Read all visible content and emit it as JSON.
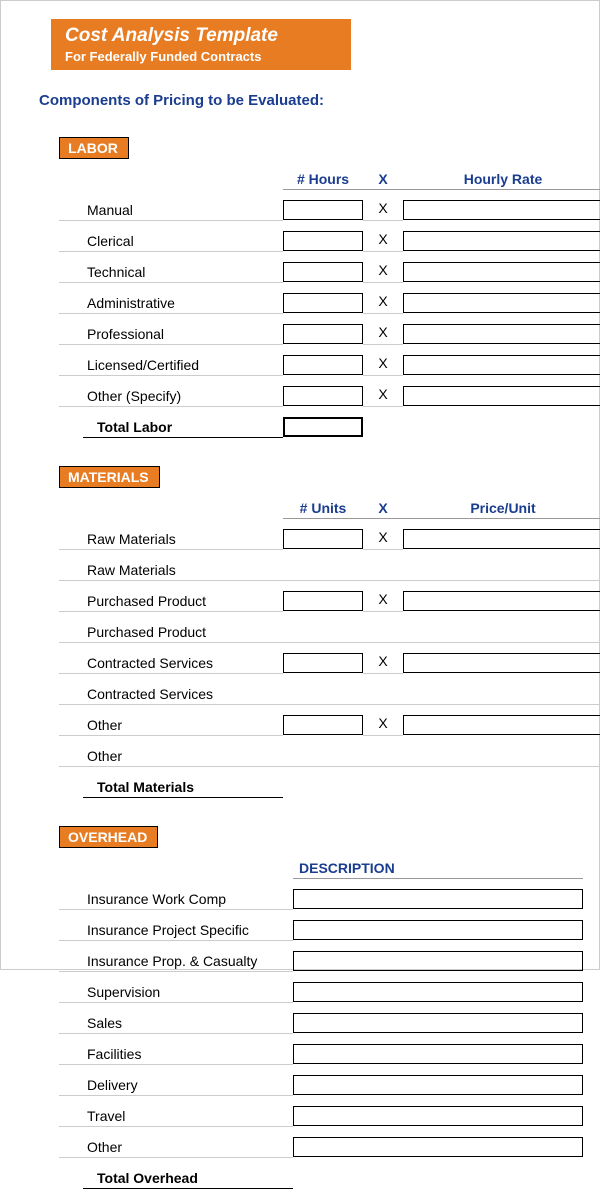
{
  "header": {
    "title": "Cost Analysis Template",
    "subtitle": "For Federally Funded Contracts"
  },
  "section_heading": "Components of Pricing to be Evaluated:",
  "colors": {
    "accent": "#e77c22",
    "heading": "#1a3d8f",
    "border": "#000000",
    "grid": "#cccccc"
  },
  "labor": {
    "label": "LABOR",
    "col_hours": "# Hours",
    "col_x": "X",
    "col_rate": "Hourly Rate",
    "rows": [
      {
        "label": "Manual",
        "x": "X"
      },
      {
        "label": "Clerical",
        "x": "X"
      },
      {
        "label": "Technical",
        "x": "X"
      },
      {
        "label": "Administrative",
        "x": "X"
      },
      {
        "label": "Professional",
        "x": "X"
      },
      {
        "label": "Licensed/Certified",
        "x": "X"
      },
      {
        "label": "Other (Specify)",
        "x": "X"
      }
    ],
    "total_label": "Total Labor"
  },
  "materials": {
    "label": "MATERIALS",
    "col_units": "# Units",
    "col_x": "X",
    "col_price": "Price/Unit",
    "rows": [
      {
        "label": "Raw Materials",
        "boxed": true,
        "x": "X"
      },
      {
        "label": "Raw Materials",
        "boxed": false,
        "x": ""
      },
      {
        "label": "Purchased Product",
        "boxed": true,
        "x": "X"
      },
      {
        "label": "Purchased Product",
        "boxed": false,
        "x": ""
      },
      {
        "label": "Contracted Services",
        "boxed": true,
        "x": "X"
      },
      {
        "label": "Contracted Services",
        "boxed": false,
        "x": ""
      },
      {
        "label": "Other",
        "boxed": true,
        "x": "X"
      },
      {
        "label": "Other",
        "boxed": false,
        "x": ""
      }
    ],
    "total_label": "Total Materials"
  },
  "overhead": {
    "label": "OVERHEAD",
    "col_desc": "DESCRIPTION",
    "rows": [
      {
        "label": "Insurance Work Comp"
      },
      {
        "label": "Insurance Project Specific"
      },
      {
        "label": "Insurance Prop. & Casualty"
      },
      {
        "label": "Supervision"
      },
      {
        "label": "Sales"
      },
      {
        "label": "Facilities"
      },
      {
        "label": "Delivery"
      },
      {
        "label": "Travel"
      },
      {
        "label": "Other"
      }
    ],
    "total_label": "Total Overhead"
  }
}
